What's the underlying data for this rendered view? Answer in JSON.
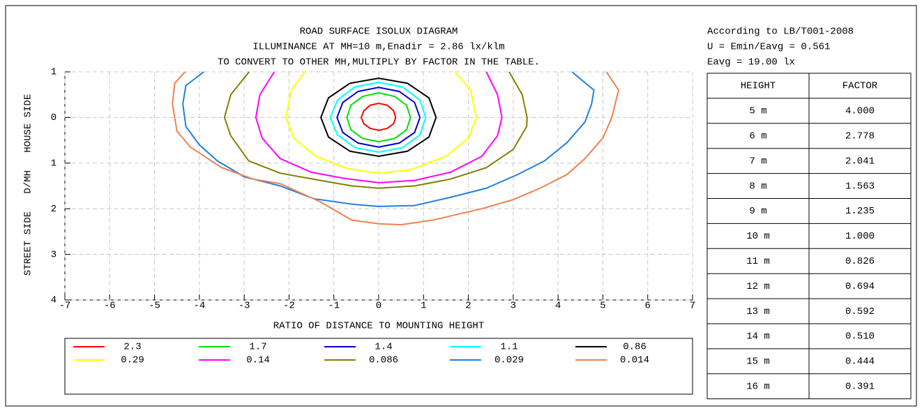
{
  "chart_data": {
    "type": "contour",
    "title": [
      "ROAD SURFACE ISOLUX DIAGRAM",
      "ILLUMINANCE AT MH=10 m,Enadir  = 2.86 lx/klm",
      "TO CONVERT TO OTHER MH,MULTIPLY BY FACTOR IN THE TABLE."
    ],
    "xlabel": "RATIO OF DISTANCE TO MOUNTING HEIGHT",
    "ylabel": "STREET SIDE   D/MH   HOUSE SIDE",
    "xlim": [
      -7,
      7
    ],
    "xticks": [
      -7,
      -6,
      -5,
      -4,
      -3,
      -2,
      -1,
      0,
      1,
      2,
      3,
      4,
      5,
      6,
      7
    ],
    "ylim": [
      -1,
      4
    ],
    "y_inverted": true,
    "yticks": [
      {
        "value": -1,
        "label": "1"
      },
      0,
      1,
      2,
      3,
      4
    ],
    "grid": true,
    "series": [
      {
        "name": "2.3",
        "color": "#ff0000",
        "x": [
          0.38,
          0.33,
          0.19,
          0,
          -0.19,
          -0.33,
          -0.39,
          -0.33,
          -0.19,
          0,
          0.19,
          0.33,
          0.38
        ],
        "y": [
          0,
          0.14,
          0.24,
          0.28,
          0.24,
          0.14,
          0,
          -0.15,
          -0.27,
          -0.31,
          -0.27,
          -0.15,
          0
        ]
      },
      {
        "name": "1.7",
        "color": "#00e000",
        "x": [
          0.71,
          0.62,
          0.36,
          0,
          -0.36,
          -0.62,
          -0.71,
          -0.62,
          -0.36,
          0,
          0.36,
          0.62,
          0.71
        ],
        "y": [
          0,
          0.27,
          0.46,
          0.53,
          0.46,
          0.27,
          0,
          -0.27,
          -0.46,
          -0.54,
          -0.46,
          -0.27,
          0
        ]
      },
      {
        "name": "1.4",
        "color": "#0000cc",
        "x": [
          0.92,
          0.8,
          0.46,
          0,
          -0.46,
          -0.8,
          -0.93,
          -0.8,
          -0.46,
          0,
          0.46,
          0.8,
          0.92
        ],
        "y": [
          0,
          0.33,
          0.56,
          0.65,
          0.56,
          0.33,
          0,
          -0.33,
          -0.57,
          -0.66,
          -0.57,
          -0.33,
          0
        ]
      },
      {
        "name": "1.1",
        "color": "#00ffff",
        "x": [
          1.05,
          0.92,
          0.53,
          0,
          -0.53,
          -0.92,
          -1.08,
          -0.92,
          -0.53,
          0,
          0.53,
          0.92,
          1.05
        ],
        "y": [
          0,
          0.38,
          0.66,
          0.76,
          0.66,
          0.38,
          0,
          -0.38,
          -0.67,
          -0.77,
          -0.67,
          -0.38,
          0
        ]
      },
      {
        "name": "0.86",
        "color": "#000000",
        "x": [
          1.28,
          1.12,
          0.64,
          0,
          -0.64,
          -1.12,
          -1.29,
          -1.12,
          -0.64,
          0,
          0.64,
          1.12,
          1.28
        ],
        "y": [
          0,
          0.43,
          0.74,
          0.85,
          0.74,
          0.43,
          0,
          -0.43,
          -0.75,
          -0.86,
          -0.75,
          -0.43,
          0
        ]
      },
      {
        "name": "0.29",
        "color": "#ffff00",
        "x": [
          -1.65,
          -1.95,
          -2.07,
          -1.9,
          -1.4,
          -0.7,
          0,
          0.7,
          1.5,
          2.0,
          2.18,
          2.05,
          1.7
        ],
        "y": [
          -1,
          -0.6,
          0,
          0.45,
          0.85,
          1.12,
          1.22,
          1.15,
          0.85,
          0.45,
          0,
          -0.6,
          -1
        ]
      },
      {
        "name": "0.14",
        "color": "#ff00ff",
        "x": [
          -2.33,
          -2.65,
          -2.74,
          -2.6,
          -2.2,
          -1.5,
          -0.8,
          0,
          0.8,
          1.6,
          2.3,
          2.65,
          2.75,
          2.65,
          2.4
        ],
        "y": [
          -1,
          -0.5,
          0,
          0.45,
          0.9,
          1.2,
          1.33,
          1.43,
          1.38,
          1.2,
          0.85,
          0.4,
          0,
          -0.5,
          -1
        ]
      },
      {
        "name": "0.086",
        "color": "#808000",
        "x": [
          -2.89,
          -3.3,
          -3.44,
          -3.3,
          -2.9,
          -2.2,
          -1.3,
          -0.6,
          0,
          0.8,
          1.6,
          2.4,
          3.0,
          3.3,
          3.31,
          3.2,
          2.91
        ],
        "y": [
          -1,
          -0.5,
          0,
          0.4,
          0.95,
          1.22,
          1.38,
          1.5,
          1.55,
          1.5,
          1.35,
          1.1,
          0.7,
          0.2,
          0,
          -0.5,
          -1
        ]
      },
      {
        "name": "0.029",
        "color": "#2080e0",
        "x": [
          -3.9,
          -4.3,
          -4.37,
          -4.3,
          -4.0,
          -3.6,
          -3.0,
          -2.2,
          -1.45,
          -0.6,
          0,
          0.8,
          1.6,
          2.4,
          3.1,
          3.7,
          4.2,
          4.6,
          4.75,
          4.8,
          4.31
        ],
        "y": [
          -1,
          -0.7,
          -0.3,
          0.2,
          0.6,
          0.95,
          1.3,
          1.5,
          1.78,
          1.9,
          1.95,
          1.93,
          1.75,
          1.55,
          1.25,
          0.95,
          0.55,
          0.1,
          -0.3,
          -0.6,
          -1
        ]
      },
      {
        "name": "0.014",
        "color": "#f08050",
        "x": [
          -4.32,
          -4.55,
          -4.6,
          -4.5,
          -4.2,
          -3.5,
          -2.8,
          -2.2,
          -1.3,
          -0.6,
          0,
          0.5,
          1.2,
          2.3,
          3.0,
          3.6,
          4.2,
          4.6,
          5.0,
          5.2,
          5.35,
          5.08
        ],
        "y": [
          -1,
          -0.75,
          -0.3,
          0.3,
          0.65,
          1.1,
          1.35,
          1.45,
          1.85,
          2.25,
          2.33,
          2.35,
          2.25,
          2.0,
          1.8,
          1.55,
          1.25,
          0.9,
          0.45,
          0,
          -0.6,
          -1
        ]
      }
    ]
  },
  "info": [
    "According to LB/T001-2008",
    "U = Emin/Eavg = 0.561",
    "Eavg = 19.00 lx"
  ],
  "table": {
    "header": [
      "HEIGHT",
      "FACTOR"
    ],
    "rows": [
      [
        "5 m",
        "4.000"
      ],
      [
        "6 m",
        "2.778"
      ],
      [
        "7 m",
        "2.041"
      ],
      [
        "8 m",
        "1.563"
      ],
      [
        "9 m",
        "1.235"
      ],
      [
        "10 m",
        "1.000"
      ],
      [
        "11 m",
        "0.826"
      ],
      [
        "12 m",
        "0.694"
      ],
      [
        "13 m",
        "0.592"
      ],
      [
        "14 m",
        "0.510"
      ],
      [
        "15 m",
        "0.444"
      ],
      [
        "16 m",
        "0.391"
      ]
    ]
  }
}
